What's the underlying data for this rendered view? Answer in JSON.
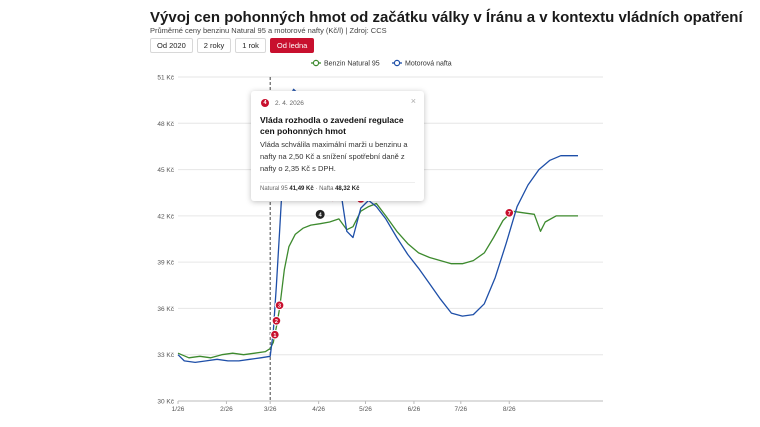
{
  "header": {
    "title": "Vývoj cen pohonných hmot od začátku války v Íránu a v kontextu vládních opatření",
    "subtitle": "Průměrné ceny benzinu Natural 95 a motorové nafty (Kč/l) | Zdroj: CCS"
  },
  "range_buttons": [
    {
      "label": "Od 2020",
      "active": false
    },
    {
      "label": "2 roky",
      "active": false
    },
    {
      "label": "1 rok",
      "active": false
    },
    {
      "label": "Od ledna",
      "active": true
    }
  ],
  "tooltip": {
    "marker": "4",
    "date": "2. 4. 2026",
    "close": "×",
    "title": "Vláda rozhodla o zavedení regulace cen pohonných hmot",
    "body": "Vláda schválila maximální marži u benzinu a nafty na 2,50 Kč a snížení spotřební daně z nafty o 2,35 Kč s DPH.",
    "benzin_label": "Natural 95",
    "benzin_value": "41,49 Kč",
    "separator": "·",
    "nafta_label": "Nafta",
    "nafta_value": "48,32 Kč"
  },
  "colors": {
    "benzin": "#3d8a2e",
    "nafta": "#1e4fa8",
    "marker": "#c8102e",
    "marker_active": "#222222",
    "grid": "#e6e6e6"
  },
  "chart_data": {
    "type": "line",
    "title": "Vývoj cen pohonných hmot od začátku války v Íránu a v kontextu vládních opatření",
    "ylabel": "",
    "xlabel": "",
    "ylim": [
      30,
      51
    ],
    "yticks": [
      30,
      33,
      36,
      39,
      42,
      45,
      48,
      51
    ],
    "ytick_labels": [
      "30 Kč",
      "33 Kč",
      "36 Kč",
      "39 Kč",
      "42 Kč",
      "45 Kč",
      "48 Kč",
      "51 Kč"
    ],
    "x_start": "2026-01-01",
    "x_end": "2026-09-30",
    "xticks": [
      {
        "date": "2026-01-01",
        "label": "1/26"
      },
      {
        "date": "2026-02-01",
        "label": "2/26"
      },
      {
        "date": "2026-03-01",
        "label": "3/26"
      },
      {
        "date": "2026-04-01",
        "label": "4/26"
      },
      {
        "date": "2026-05-01",
        "label": "5/26"
      },
      {
        "date": "2026-06-01",
        "label": "6/26"
      },
      {
        "date": "2026-07-01",
        "label": "7/26"
      },
      {
        "date": "2026-08-01",
        "label": "8/26"
      }
    ],
    "grid": true,
    "legend_position": "top-right",
    "vertical_marker_date": "2026-03-01",
    "series": [
      {
        "name": "Benzin Natural 95",
        "key": "benzin",
        "points": [
          [
            "2026-01-01",
            33.1
          ],
          [
            "2026-01-08",
            32.8
          ],
          [
            "2026-01-15",
            32.9
          ],
          [
            "2026-01-22",
            32.8
          ],
          [
            "2026-01-29",
            33.0
          ],
          [
            "2026-02-05",
            33.1
          ],
          [
            "2026-02-12",
            33.0
          ],
          [
            "2026-02-19",
            33.1
          ],
          [
            "2026-02-26",
            33.2
          ],
          [
            "2026-03-01",
            33.4
          ],
          [
            "2026-03-03",
            33.8
          ],
          [
            "2026-03-05",
            34.8
          ],
          [
            "2026-03-07",
            36.0
          ],
          [
            "2026-03-10",
            38.5
          ],
          [
            "2026-03-13",
            40.0
          ],
          [
            "2026-03-17",
            40.8
          ],
          [
            "2026-03-22",
            41.2
          ],
          [
            "2026-03-27",
            41.4
          ],
          [
            "2026-04-02",
            41.49
          ],
          [
            "2026-04-08",
            41.6
          ],
          [
            "2026-04-14",
            41.8
          ],
          [
            "2026-04-19",
            41.1
          ],
          [
            "2026-04-23",
            41.3
          ],
          [
            "2026-04-28",
            42.3
          ],
          [
            "2026-05-03",
            42.6
          ],
          [
            "2026-05-08",
            42.8
          ],
          [
            "2026-05-14",
            42.0
          ],
          [
            "2026-05-21",
            41.0
          ],
          [
            "2026-05-28",
            40.2
          ],
          [
            "2026-06-04",
            39.6
          ],
          [
            "2026-06-11",
            39.3
          ],
          [
            "2026-06-18",
            39.1
          ],
          [
            "2026-06-25",
            38.9
          ],
          [
            "2026-07-02",
            38.9
          ],
          [
            "2026-07-09",
            39.1
          ],
          [
            "2026-07-16",
            39.6
          ],
          [
            "2026-07-22",
            40.6
          ],
          [
            "2026-07-28",
            41.7
          ],
          [
            "2026-08-03",
            42.3
          ],
          [
            "2026-08-10",
            42.2
          ],
          [
            "2026-08-17",
            42.1
          ],
          [
            "2026-08-21",
            41.0
          ],
          [
            "2026-08-24",
            41.6
          ],
          [
            "2026-08-31",
            42.0
          ],
          [
            "2026-09-07",
            42.0
          ],
          [
            "2026-09-14",
            42.0
          ]
        ]
      },
      {
        "name": "Motorová nafta",
        "key": "nafta",
        "points": [
          [
            "2026-01-01",
            33.0
          ],
          [
            "2026-01-05",
            32.6
          ],
          [
            "2026-01-12",
            32.5
          ],
          [
            "2026-01-19",
            32.6
          ],
          [
            "2026-01-26",
            32.7
          ],
          [
            "2026-02-02",
            32.6
          ],
          [
            "2026-02-09",
            32.6
          ],
          [
            "2026-02-16",
            32.7
          ],
          [
            "2026-02-23",
            32.8
          ],
          [
            "2026-03-01",
            32.9
          ],
          [
            "2026-03-03",
            34.5
          ],
          [
            "2026-03-05",
            37.5
          ],
          [
            "2026-03-07",
            41.0
          ],
          [
            "2026-03-09",
            44.5
          ],
          [
            "2026-03-11",
            47.5
          ],
          [
            "2026-03-13",
            49.5
          ],
          [
            "2026-03-16",
            50.2
          ],
          [
            "2026-03-20",
            49.8
          ],
          [
            "2026-03-26",
            49.0
          ],
          [
            "2026-04-02",
            48.32
          ],
          [
            "2026-04-07",
            47.2
          ],
          [
            "2026-04-12",
            45.8
          ],
          [
            "2026-04-16",
            43.0
          ],
          [
            "2026-04-19",
            41.0
          ],
          [
            "2026-04-23",
            40.6
          ],
          [
            "2026-04-28",
            42.5
          ],
          [
            "2026-05-03",
            43.0
          ],
          [
            "2026-05-08",
            42.6
          ],
          [
            "2026-05-14",
            41.8
          ],
          [
            "2026-05-21",
            40.6
          ],
          [
            "2026-05-28",
            39.5
          ],
          [
            "2026-06-04",
            38.6
          ],
          [
            "2026-06-11",
            37.6
          ],
          [
            "2026-06-18",
            36.6
          ],
          [
            "2026-06-25",
            35.7
          ],
          [
            "2026-07-02",
            35.5
          ],
          [
            "2026-07-09",
            35.6
          ],
          [
            "2026-07-16",
            36.3
          ],
          [
            "2026-07-23",
            38.0
          ],
          [
            "2026-07-30",
            40.2
          ],
          [
            "2026-08-06",
            42.6
          ],
          [
            "2026-08-13",
            44.0
          ],
          [
            "2026-08-20",
            45.0
          ],
          [
            "2026-08-27",
            45.6
          ],
          [
            "2026-09-03",
            45.9
          ],
          [
            "2026-09-14",
            45.9
          ]
        ]
      }
    ],
    "markers": [
      {
        "label": "1",
        "date": "2026-03-04",
        "y": 34.3,
        "active": false
      },
      {
        "label": "2",
        "date": "2026-03-05",
        "y": 35.2,
        "active": false
      },
      {
        "label": "3",
        "date": "2026-03-07",
        "y": 36.2,
        "active": false
      },
      {
        "label": "4",
        "date": "2026-04-02",
        "y": 42.1,
        "active": true
      },
      {
        "label": "5",
        "date": "2026-04-10",
        "y": 43.2,
        "active": false
      },
      {
        "label": "6",
        "date": "2026-04-28",
        "y": 43.1,
        "active": false
      },
      {
        "label": "7",
        "date": "2026-08-01",
        "y": 42.2,
        "active": false
      }
    ]
  }
}
